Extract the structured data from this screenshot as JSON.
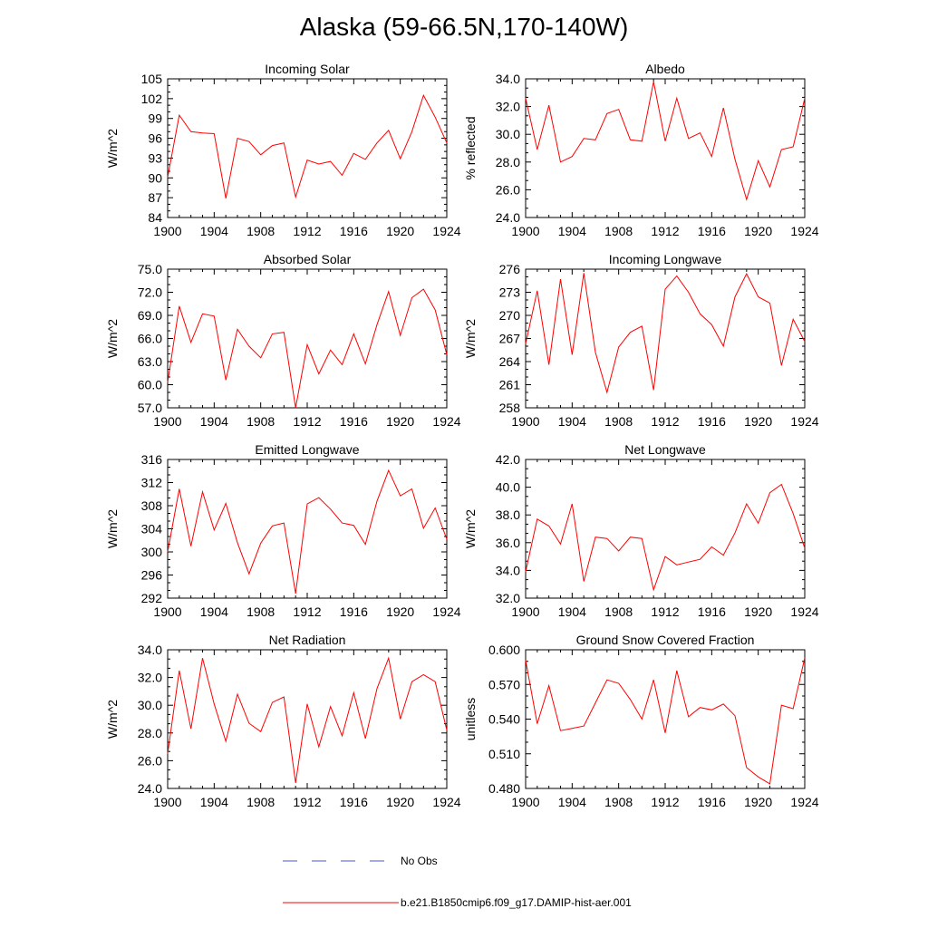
{
  "title": "Alaska (59-66.5N,170-140W)",
  "legend": {
    "obs_label": "No Obs",
    "model_label": "b.e21.B1850cmip6.f09_g17.DAMIP-hist-aer.001",
    "obs_color": "#5050d0",
    "model_color": "#ff0000"
  },
  "chart_data": [
    {
      "type": "line",
      "title": "Incoming Solar",
      "ylabel": "W/m^2",
      "xlim": [
        1900,
        1924
      ],
      "ylim": [
        84,
        105
      ],
      "xticks": [
        "1900",
        "1904",
        "1908",
        "1912",
        "1916",
        "1920",
        "1924"
      ],
      "yticks": [
        "84",
        "87",
        "90",
        "93",
        "96",
        "99",
        "102",
        "105"
      ],
      "x": [
        1900,
        1901,
        1902,
        1903,
        1904,
        1905,
        1906,
        1907,
        1908,
        1909,
        1910,
        1911,
        1912,
        1913,
        1914,
        1915,
        1916,
        1917,
        1918,
        1919,
        1920,
        1921,
        1922,
        1923,
        1924
      ],
      "values": [
        90.1,
        99.5,
        97.0,
        96.8,
        96.7,
        86.9,
        96.0,
        95.5,
        93.5,
        94.9,
        95.3,
        87.1,
        92.7,
        92.1,
        92.5,
        90.4,
        93.7,
        92.8,
        95.3,
        97.2,
        92.9,
        97.0,
        102.5,
        99.2,
        95.3
      ]
    },
    {
      "type": "line",
      "title": "Albedo",
      "ylabel": "% reflected",
      "xlim": [
        1900,
        1924
      ],
      "ylim": [
        24.0,
        34.0
      ],
      "xticks": [
        "1900",
        "1904",
        "1908",
        "1912",
        "1916",
        "1920",
        "1924"
      ],
      "yticks": [
        "24.0",
        "26.0",
        "28.0",
        "30.0",
        "32.0",
        "34.0"
      ],
      "x": [
        1900,
        1901,
        1902,
        1903,
        1904,
        1905,
        1906,
        1907,
        1908,
        1909,
        1910,
        1911,
        1912,
        1913,
        1914,
        1915,
        1916,
        1917,
        1918,
        1919,
        1920,
        1921,
        1922,
        1923,
        1924
      ],
      "values": [
        32.6,
        28.9,
        32.1,
        28.0,
        28.4,
        29.7,
        29.6,
        31.5,
        31.8,
        29.6,
        29.5,
        33.8,
        29.5,
        32.6,
        29.7,
        30.1,
        28.4,
        31.9,
        28.2,
        25.3,
        28.1,
        26.2,
        28.9,
        29.1,
        32.6
      ]
    },
    {
      "type": "line",
      "title": "Absorbed Solar",
      "ylabel": "W/m^2",
      "xlim": [
        1900,
        1924
      ],
      "ylim": [
        57.0,
        75.0
      ],
      "xticks": [
        "1900",
        "1904",
        "1908",
        "1912",
        "1916",
        "1920",
        "1924"
      ],
      "yticks": [
        "57.0",
        "60.0",
        "63.0",
        "66.0",
        "69.0",
        "72.0",
        "75.0"
      ],
      "x": [
        1900,
        1901,
        1902,
        1903,
        1904,
        1905,
        1906,
        1907,
        1908,
        1909,
        1910,
        1911,
        1912,
        1913,
        1914,
        1915,
        1916,
        1917,
        1918,
        1919,
        1920,
        1921,
        1922,
        1923,
        1924
      ],
      "values": [
        60.3,
        70.2,
        65.5,
        69.2,
        68.9,
        60.6,
        67.2,
        65.0,
        63.5,
        66.6,
        66.8,
        57.0,
        65.2,
        61.4,
        64.5,
        62.6,
        66.6,
        62.7,
        67.8,
        72.1,
        66.4,
        71.3,
        72.4,
        69.7,
        63.9
      ]
    },
    {
      "type": "line",
      "title": "Incoming Longwave",
      "ylabel": "W/m^2",
      "xlim": [
        1900,
        1924
      ],
      "ylim": [
        258,
        276
      ],
      "xticks": [
        "1900",
        "1904",
        "1908",
        "1912",
        "1916",
        "1920",
        "1924"
      ],
      "yticks": [
        "258",
        "261",
        "264",
        "267",
        "270",
        "273",
        "276"
      ],
      "x": [
        1900,
        1901,
        1902,
        1903,
        1904,
        1905,
        1906,
        1907,
        1908,
        1909,
        1910,
        1911,
        1912,
        1913,
        1914,
        1915,
        1916,
        1917,
        1918,
        1919,
        1920,
        1921,
        1922,
        1923,
        1924
      ],
      "values": [
        266.3,
        273.2,
        263.6,
        274.7,
        264.9,
        275.5,
        265.2,
        260.0,
        265.9,
        267.8,
        268.6,
        260.3,
        273.4,
        275.1,
        273.0,
        270.2,
        268.8,
        266.0,
        272.4,
        275.4,
        272.4,
        271.6,
        263.5,
        269.5,
        266.6
      ]
    },
    {
      "type": "line",
      "title": "Emitted Longwave",
      "ylabel": "W/m^2",
      "xlim": [
        1900,
        1924
      ],
      "ylim": [
        292,
        316
      ],
      "xticks": [
        "1900",
        "1904",
        "1908",
        "1912",
        "1916",
        "1920",
        "1924"
      ],
      "yticks": [
        "292",
        "296",
        "300",
        "304",
        "308",
        "312",
        "316"
      ],
      "x": [
        1900,
        1901,
        1902,
        1903,
        1904,
        1905,
        1906,
        1907,
        1908,
        1909,
        1910,
        1911,
        1912,
        1913,
        1914,
        1915,
        1916,
        1917,
        1918,
        1919,
        1920,
        1921,
        1922,
        1923,
        1924
      ],
      "values": [
        300.0,
        310.9,
        301.0,
        310.4,
        303.8,
        308.4,
        301.6,
        296.2,
        301.5,
        304.5,
        305.0,
        292.8,
        308.3,
        309.4,
        307.4,
        305.0,
        304.6,
        301.3,
        308.8,
        314.1,
        309.7,
        310.9,
        304.1,
        307.6,
        302.2
      ]
    },
    {
      "type": "line",
      "title": "Net Longwave",
      "ylabel": "W/m^2",
      "xlim": [
        1900,
        1924
      ],
      "ylim": [
        32.0,
        42.0
      ],
      "xticks": [
        "1900",
        "1904",
        "1908",
        "1912",
        "1916",
        "1920",
        "1924"
      ],
      "yticks": [
        "32.0",
        "34.0",
        "36.0",
        "38.0",
        "40.0",
        "42.0"
      ],
      "x": [
        1900,
        1901,
        1902,
        1903,
        1904,
        1905,
        1906,
        1907,
        1908,
        1909,
        1910,
        1911,
        1912,
        1913,
        1914,
        1915,
        1916,
        1917,
        1918,
        1919,
        1920,
        1921,
        1922,
        1923,
        1924
      ],
      "values": [
        33.9,
        37.7,
        37.2,
        35.9,
        38.8,
        33.2,
        36.4,
        36.3,
        35.4,
        36.4,
        36.3,
        32.6,
        35.0,
        34.4,
        34.6,
        34.8,
        35.7,
        35.1,
        36.7,
        38.8,
        37.4,
        39.6,
        40.2,
        38.1,
        35.6
      ]
    },
    {
      "type": "line",
      "title": "Net Radiation",
      "ylabel": "W/m^2",
      "xlim": [
        1900,
        1924
      ],
      "ylim": [
        24.0,
        34.0
      ],
      "xticks": [
        "1900",
        "1904",
        "1908",
        "1912",
        "1916",
        "1920",
        "1924"
      ],
      "yticks": [
        "24.0",
        "26.0",
        "28.0",
        "30.0",
        "32.0",
        "34.0"
      ],
      "x": [
        1900,
        1901,
        1902,
        1903,
        1904,
        1905,
        1906,
        1907,
        1908,
        1909,
        1910,
        1911,
        1912,
        1913,
        1914,
        1915,
        1916,
        1917,
        1918,
        1919,
        1920,
        1921,
        1922,
        1923,
        1924
      ],
      "values": [
        26.5,
        32.5,
        28.3,
        33.4,
        30.1,
        27.4,
        30.8,
        28.7,
        28.1,
        30.2,
        30.6,
        24.4,
        30.1,
        27.0,
        29.9,
        27.8,
        30.9,
        27.6,
        31.2,
        33.4,
        29.0,
        31.7,
        32.2,
        31.7,
        28.2
      ]
    },
    {
      "type": "line",
      "title": "Ground Snow Covered Fraction",
      "ylabel": "unitless",
      "xlim": [
        1900,
        1924
      ],
      "ylim": [
        0.48,
        0.6
      ],
      "xticks": [
        "1900",
        "1904",
        "1908",
        "1912",
        "1916",
        "1920",
        "1924"
      ],
      "yticks": [
        "0.480",
        "0.510",
        "0.540",
        "0.570",
        "0.600"
      ],
      "x": [
        1900,
        1901,
        1902,
        1903,
        1904,
        1905,
        1906,
        1907,
        1908,
        1909,
        1910,
        1911,
        1912,
        1913,
        1914,
        1915,
        1916,
        1917,
        1918,
        1919,
        1920,
        1921,
        1922,
        1923,
        1924
      ],
      "values": [
        0.591,
        0.536,
        0.569,
        0.53,
        0.532,
        0.534,
        0.554,
        0.574,
        0.571,
        0.557,
        0.54,
        0.574,
        0.528,
        0.582,
        0.542,
        0.55,
        0.548,
        0.553,
        0.543,
        0.498,
        0.49,
        0.484,
        0.552,
        0.549,
        0.593
      ]
    }
  ]
}
